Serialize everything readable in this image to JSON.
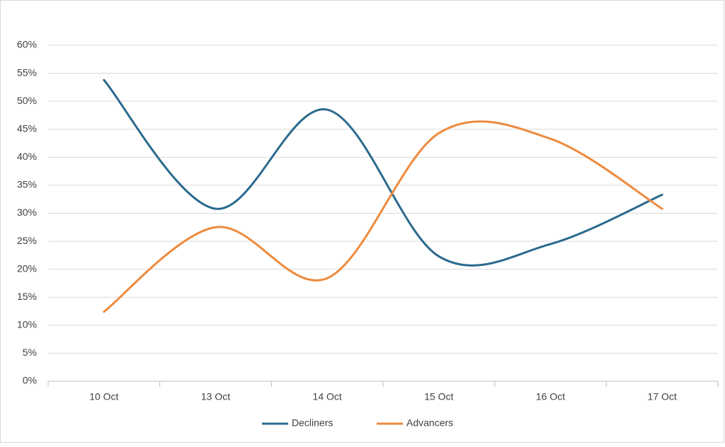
{
  "chart_data": {
    "type": "line",
    "categories": [
      "10 Oct",
      "13 Oct",
      "14 Oct",
      "15 Oct",
      "16 Oct",
      "17 Oct"
    ],
    "series": [
      {
        "name": "Decliners",
        "color": "#2b6a8e",
        "values": [
          53.8,
          30.8,
          48.5,
          22.3,
          24.5,
          33.3
        ]
      },
      {
        "name": "Advancers",
        "color": "#ee8a3d",
        "values": [
          12.4,
          27.5,
          18.4,
          44.3,
          43.3,
          30.8
        ]
      }
    ],
    "ylim": [
      0,
      60
    ],
    "yticks": [
      {
        "value": 0,
        "label": "0%"
      },
      {
        "value": 5,
        "label": "5%"
      },
      {
        "value": 10,
        "label": "10%"
      },
      {
        "value": 15,
        "label": "15%"
      },
      {
        "value": 20,
        "label": "20%"
      },
      {
        "value": 25,
        "label": "25%"
      },
      {
        "value": 30,
        "label": "30%"
      },
      {
        "value": 35,
        "label": "35%"
      },
      {
        "value": 40,
        "label": "40%"
      },
      {
        "value": 45,
        "label": "45%"
      },
      {
        "value": 50,
        "label": "50%"
      },
      {
        "value": 55,
        "label": "55%"
      },
      {
        "value": 60,
        "label": "60%"
      }
    ],
    "grid": true,
    "smooth": true,
    "legend": "bottom"
  }
}
